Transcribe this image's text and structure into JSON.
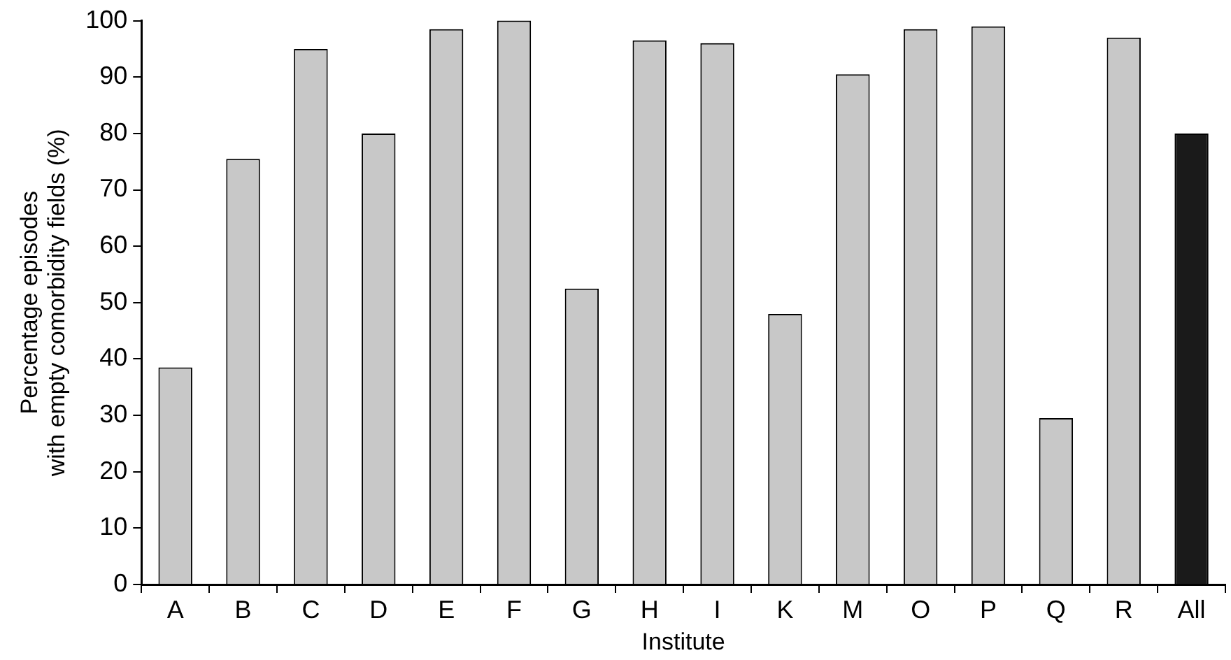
{
  "chart_data": {
    "type": "bar",
    "xlabel": "Institute",
    "ylabel": "Percentage episodes\nwith empty comorbidity fields (%)",
    "categories": [
      "A",
      "B",
      "C",
      "D",
      "E",
      "F",
      "G",
      "H",
      "I",
      "K",
      "M",
      "O",
      "P",
      "Q",
      "R",
      "All"
    ],
    "values": [
      38.5,
      75.5,
      95,
      80,
      98.5,
      100,
      52.5,
      96.5,
      96,
      48,
      90.5,
      98.5,
      99,
      29.5,
      97,
      80
    ],
    "colors": [
      "#c8c8c8",
      "#c8c8c8",
      "#c8c8c8",
      "#c8c8c8",
      "#c8c8c8",
      "#c8c8c8",
      "#c8c8c8",
      "#c8c8c8",
      "#c8c8c8",
      "#c8c8c8",
      "#c8c8c8",
      "#c8c8c8",
      "#c8c8c8",
      "#c8c8c8",
      "#c8c8c8",
      "#1a1a1a"
    ],
    "ylim": [
      0,
      100
    ],
    "yticks": [
      0,
      10,
      20,
      30,
      40,
      50,
      60,
      70,
      80,
      90,
      100
    ],
    "grid": false,
    "legend": false
  }
}
